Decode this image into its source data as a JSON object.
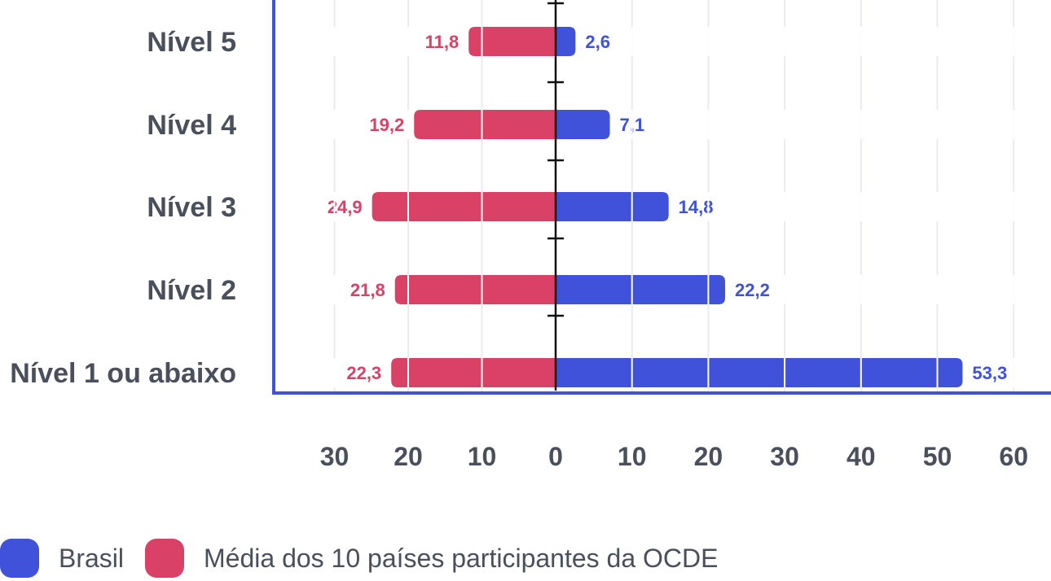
{
  "chart_data": {
    "type": "bar",
    "orientation": "horizontal-diverging",
    "categories": [
      "Nível 5",
      "Nível 4",
      "Nível 3",
      "Nível 2",
      "Nível 1 ou abaixo"
    ],
    "series": [
      {
        "name": "Brasil",
        "values": [
          2.6,
          7.1,
          14.8,
          22.2,
          53.3
        ],
        "color": "#4052d9",
        "labels": [
          "2,6",
          "7,1",
          "14,8",
          "22,2",
          "53,3"
        ]
      },
      {
        "name": "Média dos 10 países participantes da OCDE",
        "values": [
          11.8,
          19.2,
          24.9,
          21.8,
          22.3
        ],
        "color": "#d94166",
        "labels": [
          "11,8",
          "19,2",
          "24,9",
          "21,8",
          "22,3"
        ]
      }
    ],
    "left_ticks": [
      "30",
      "20",
      "10"
    ],
    "zero_tick": "0",
    "right_ticks": [
      "10",
      "20",
      "30",
      "40",
      "50",
      "60"
    ],
    "xlim_left": 30,
    "xlim_right": 60,
    "grid": true,
    "legend_position": "bottom-left",
    "title": "",
    "xlabel": "",
    "ylabel": ""
  }
}
